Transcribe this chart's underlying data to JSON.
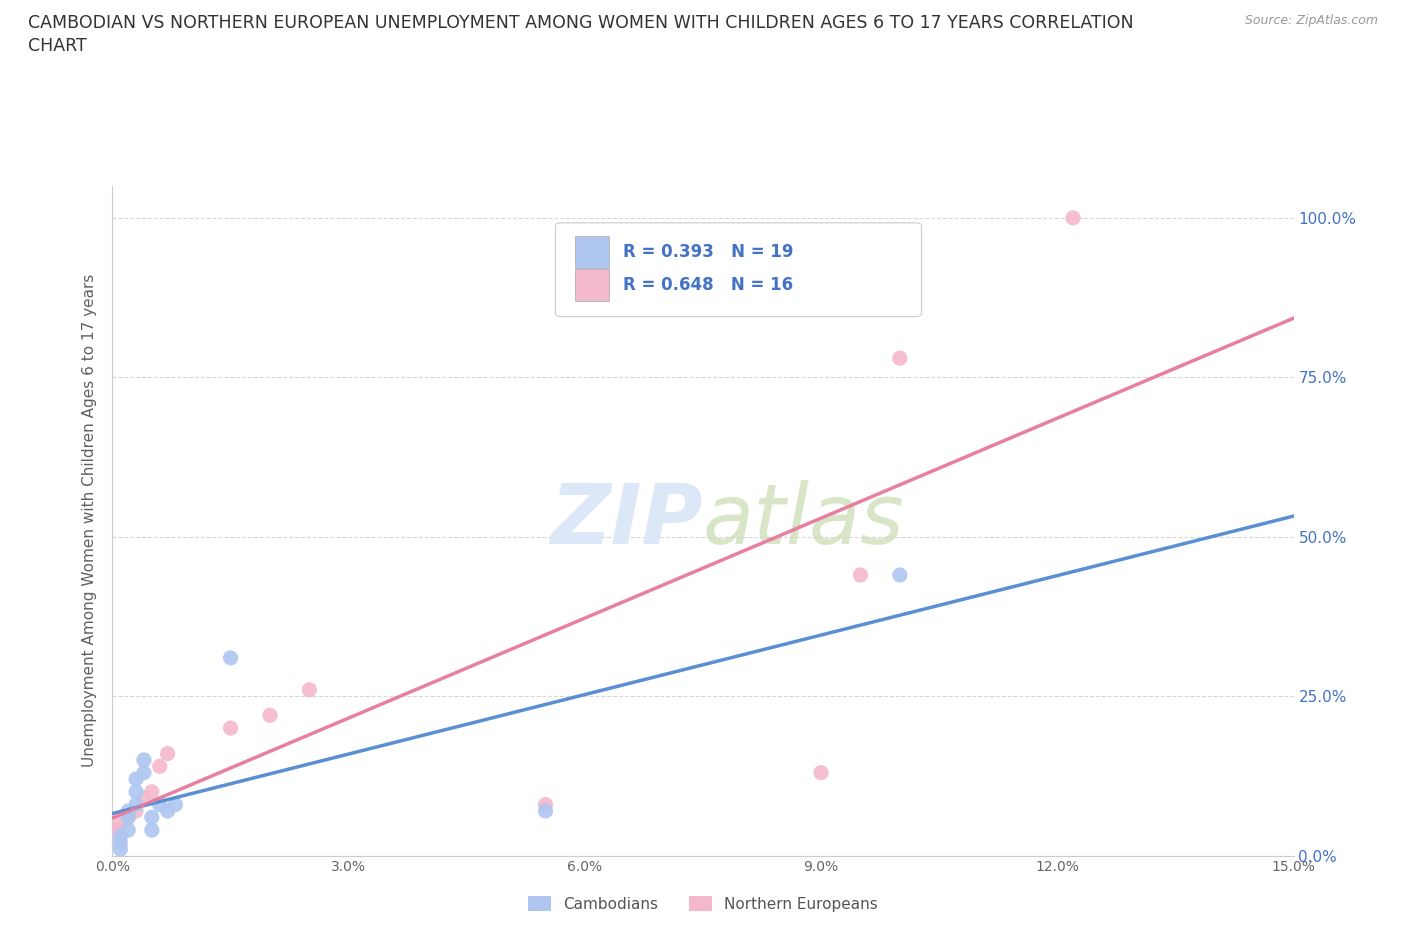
{
  "title_line1": "CAMBODIAN VS NORTHERN EUROPEAN UNEMPLOYMENT AMONG WOMEN WITH CHILDREN AGES 6 TO 17 YEARS CORRELATION",
  "title_line2": "CHART",
  "source": "Source: ZipAtlas.com",
  "ylabel": "Unemployment Among Women with Children Ages 6 to 17 years",
  "xlim": [
    0.0,
    0.15
  ],
  "ylim": [
    0.0,
    1.05
  ],
  "xtick_labels": [
    "0.0%",
    "",
    "3.0%",
    "",
    "6.0%",
    "",
    "9.0%",
    "",
    "12.0%",
    "",
    "15.0%"
  ],
  "ytick_labels": [
    "0.0%",
    "25.0%",
    "50.0%",
    "75.0%",
    "100.0%"
  ],
  "ytick_positions": [
    0.0,
    0.25,
    0.5,
    0.75,
    1.0
  ],
  "xtick_positions": [
    0.0,
    0.015,
    0.03,
    0.045,
    0.06,
    0.075,
    0.09,
    0.105,
    0.12,
    0.135,
    0.15
  ],
  "cambodian_color": "#aec6f0",
  "northern_european_color": "#f4b8cc",
  "cambodian_line_color": "#5b8fd4",
  "northern_european_line_color": "#e87fa0",
  "cambodian_R": 0.393,
  "cambodian_N": 19,
  "northern_european_R": 0.648,
  "northern_european_N": 16,
  "legend_labels": [
    "Cambodians",
    "Northern Europeans"
  ],
  "watermark": "ZIPatlas",
  "cambodian_scatter_x": [
    0.001,
    0.001,
    0.001,
    0.002,
    0.002,
    0.002,
    0.003,
    0.003,
    0.003,
    0.004,
    0.004,
    0.005,
    0.005,
    0.006,
    0.007,
    0.008,
    0.015,
    0.055,
    0.1
  ],
  "cambodian_scatter_y": [
    0.01,
    0.02,
    0.03,
    0.04,
    0.06,
    0.07,
    0.08,
    0.1,
    0.12,
    0.13,
    0.15,
    0.04,
    0.06,
    0.08,
    0.07,
    0.08,
    0.31,
    0.07,
    0.44
  ],
  "northern_european_scatter_x": [
    0.0005,
    0.001,
    0.002,
    0.003,
    0.004,
    0.005,
    0.006,
    0.007,
    0.015,
    0.02,
    0.025,
    0.055,
    0.09,
    0.095,
    0.1,
    0.122
  ],
  "northern_european_scatter_y": [
    0.04,
    0.05,
    0.06,
    0.07,
    0.09,
    0.1,
    0.14,
    0.16,
    0.2,
    0.22,
    0.26,
    0.08,
    0.13,
    0.44,
    0.78,
    1.0
  ],
  "background_color": "#ffffff",
  "grid_color": "#d8d8d8"
}
